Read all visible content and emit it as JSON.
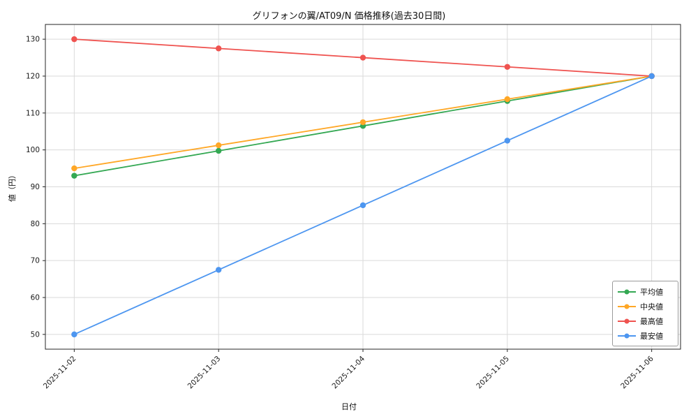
{
  "chart_data": {
    "type": "line",
    "title": "グリフォンの翼/AT09/N 価格推移(過去30日間)",
    "xlabel": "日付",
    "ylabel": "値（円）",
    "categories": [
      "2025-11-02",
      "2025-11-03",
      "2025-11-04",
      "2025-11-05",
      "2025-11-06"
    ],
    "series": [
      {
        "name": "平均値",
        "color": "#34a853",
        "values": [
          93,
          99.75,
          106.5,
          113.25,
          120
        ]
      },
      {
        "name": "中央値",
        "color": "#ffa726",
        "values": [
          95,
          101.25,
          107.5,
          113.75,
          120
        ]
      },
      {
        "name": "最高値",
        "color": "#ef5350",
        "values": [
          130,
          127.5,
          125,
          122.5,
          120
        ]
      },
      {
        "name": "最安値",
        "color": "#4d96f0",
        "values": [
          50,
          67.5,
          85,
          102.5,
          120
        ]
      }
    ],
    "yticks": [
      50,
      60,
      70,
      80,
      90,
      100,
      110,
      120,
      130
    ],
    "ylim": [
      46,
      134
    ],
    "grid": true,
    "legend_position": "lower right",
    "axis_color": "#262626",
    "grid_color": "#dadada",
    "tick_label_color": "#1a1a1a",
    "background": "#ffffff"
  }
}
